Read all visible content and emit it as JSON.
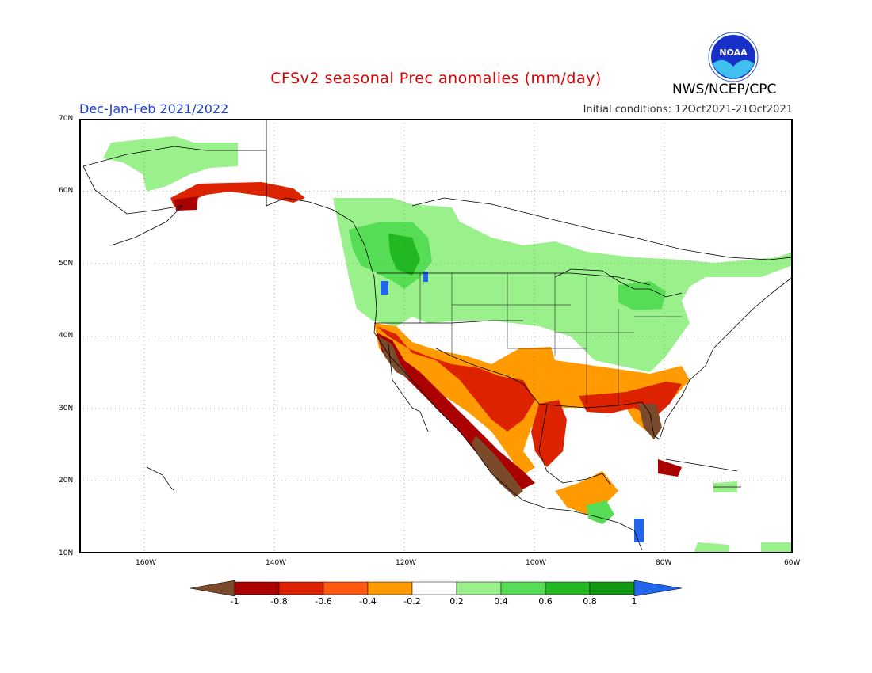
{
  "header": {
    "title": "CFSv2 seasonal Prec anomalies (mm/day)",
    "agency": "NWS/NCEP/CPC",
    "logo_text": "NOAA"
  },
  "period": "Dec-Jan-Feb 2021/2022",
  "initial_conditions": "Initial conditions: 12Oct2021-21Oct2021",
  "axes": {
    "lat_labels": [
      "70N",
      "60N",
      "50N",
      "40N",
      "30N",
      "20N",
      "10N"
    ],
    "lon_labels": [
      "160W",
      "140W",
      "120W",
      "100W",
      "80W",
      "60W"
    ]
  },
  "legend": {
    "labels": [
      "-1",
      "-0.8",
      "-0.6",
      "-0.4",
      "-0.2",
      "0.2",
      "0.4",
      "0.6",
      "0.8",
      "1"
    ],
    "colors": [
      "#7a4a2a",
      "#aa0000",
      "#dd2200",
      "#ff5a10",
      "#ff9a00",
      "#ffffff",
      "#9af08a",
      "#55dd55",
      "#22b822",
      "#119911",
      "#2266ee"
    ]
  },
  "chart_data": {
    "type": "heatmap",
    "variable": "Precipitation anomaly",
    "units": "mm/day",
    "lat_range": [
      10,
      70
    ],
    "lon_range": [
      -170,
      -60
    ],
    "regions": [
      {
        "name": "Southwest US / Southern California",
        "anomaly": "< -1"
      },
      {
        "name": "Western Mexico (Pacific coast)",
        "anomaly": "< -1"
      },
      {
        "name": "Texas / Southern Plains",
        "anomaly": "-0.4 to -0.8"
      },
      {
        "name": "Gulf Coast / Florida",
        "anomaly": "-0.6 to < -1"
      },
      {
        "name": "Pacific Northwest / British Columbia",
        "anomaly": "+0.2 to > +1"
      },
      {
        "name": "Northern Rockies",
        "anomaly": "+0.4 to > +1"
      },
      {
        "name": "Great Lakes / Ohio Valley",
        "anomaly": "+0.2 to +0.6"
      },
      {
        "name": "Southern Alaska coast",
        "anomaly": "-0.4 to -1"
      },
      {
        "name": "Northern Alaska",
        "anomaly": "+0.2 to +0.4"
      }
    ]
  }
}
